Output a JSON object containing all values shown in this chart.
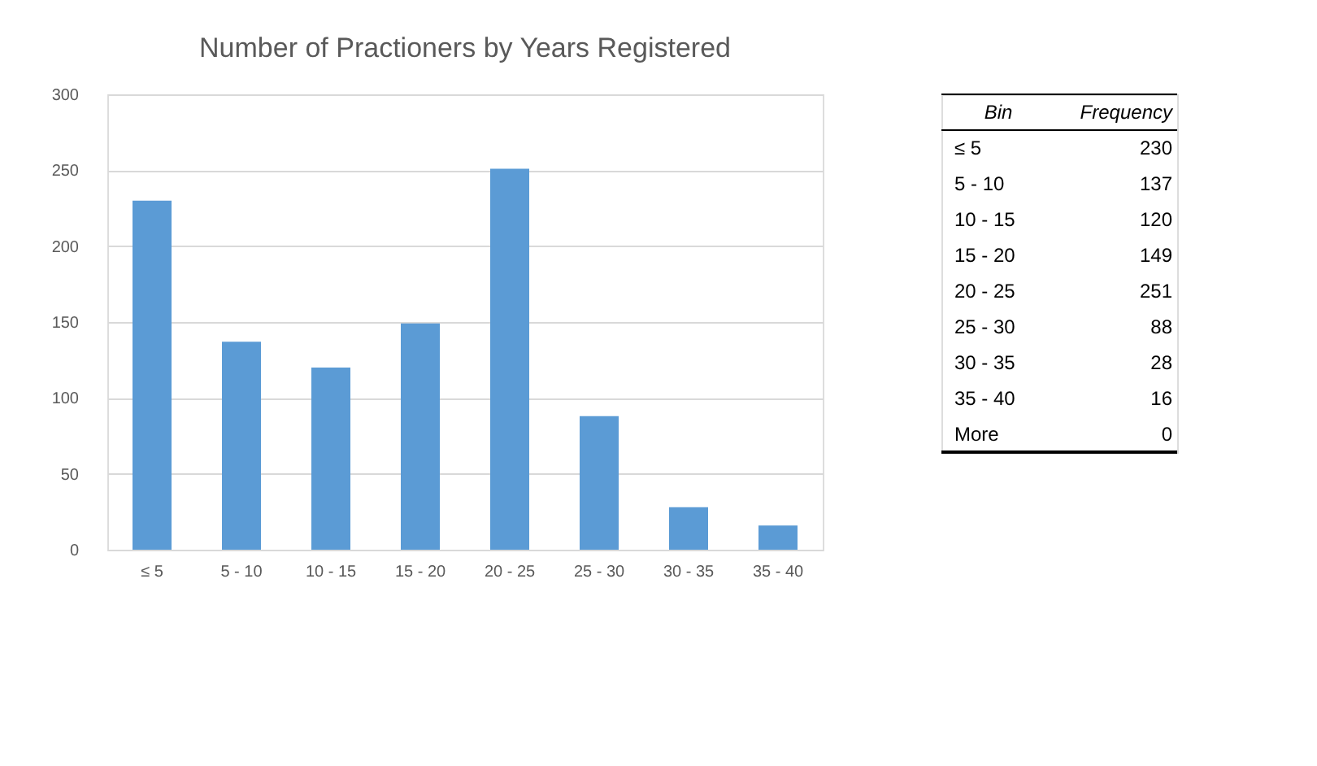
{
  "chart_data": [
    {
      "type": "bar",
      "title": "Number of Practioners by Years Registered",
      "categories": [
        "≤ 5",
        "5 - 10",
        "10 - 15",
        "15 - 20",
        "20 - 25",
        "25 - 30",
        "30 - 35",
        "35 - 40"
      ],
      "values": [
        230,
        137,
        120,
        149,
        251,
        88,
        28,
        16
      ],
      "color": "#5b9bd5",
      "ylim": [
        0,
        300
      ],
      "yticks": [
        0,
        50,
        100,
        150,
        200,
        250,
        300
      ],
      "grid": "y"
    },
    {
      "type": "other",
      "annotations": [
        "Bin",
        "Frequency"
      ],
      "categories": [
        "≤ 5",
        "5 - 10",
        "10 - 15",
        "15 - 20",
        "20 - 25",
        "25 - 30",
        "30 - 35",
        "35 - 40",
        "More"
      ],
      "values": [
        230,
        137,
        120,
        149,
        251,
        88,
        28,
        16,
        0
      ],
      "data_labels": true
    }
  ]
}
